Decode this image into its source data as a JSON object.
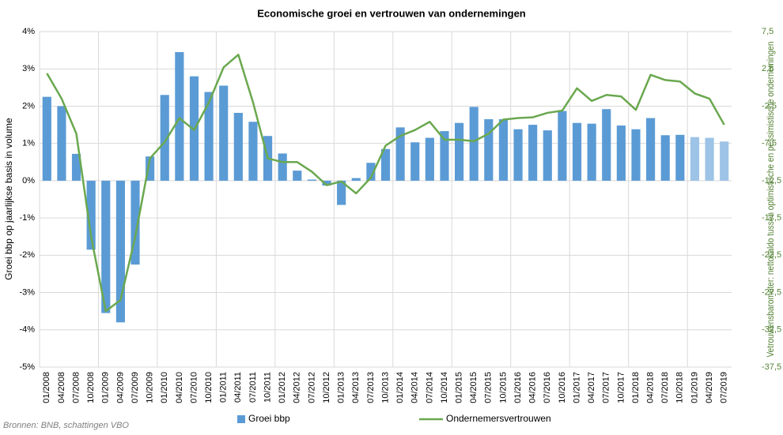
{
  "chart_data": {
    "type": "bar-line",
    "title": "Economische groei en vertrouwen van ondernemingen",
    "ylabel": "Groei bbp op jaarlijkse basis in volume",
    "y2label": "Vetrouwensbarometer: nettosaldo tussen optimistische en pessimistische ondernemingen",
    "source": "Bronnen: BNB, schattingen VBO",
    "categories": [
      "01/2008",
      "04/2008",
      "07/2008",
      "10/2008",
      "01/2009",
      "04/2009",
      "07/2009",
      "10/2009",
      "01/2010",
      "04/2010",
      "07/2010",
      "10/2010",
      "01/2011",
      "04/2011",
      "07/2011",
      "10/2011",
      "01/2012",
      "04/2012",
      "07/2012",
      "10/2012",
      "01/2013",
      "04/2013",
      "07/2013",
      "10/2013",
      "01/2014",
      "04/2014",
      "07/2014",
      "10/2014",
      "01/2015",
      "04/2015",
      "07/2015",
      "10/2015",
      "01/2016",
      "04/2016",
      "07/2016",
      "10/2016",
      "01/2017",
      "04/2017",
      "07/2017",
      "10/2017",
      "01/2018",
      "04/2018",
      "07/2018",
      "10/2018",
      "01/2019",
      "04/2019",
      "07/2019"
    ],
    "series": [
      {
        "name": "Groei bbp",
        "type": "bar",
        "color": "#5b9bd5",
        "colors": [
          "#5b9bd5",
          "#5b9bd5",
          "#5b9bd5",
          "#5b9bd5",
          "#5b9bd5",
          "#5b9bd5",
          "#5b9bd5",
          "#5b9bd5",
          "#5b9bd5",
          "#5b9bd5",
          "#5b9bd5",
          "#5b9bd5",
          "#5b9bd5",
          "#5b9bd5",
          "#5b9bd5",
          "#5b9bd5",
          "#5b9bd5",
          "#5b9bd5",
          "#5b9bd5",
          "#5b9bd5",
          "#5b9bd5",
          "#5b9bd5",
          "#5b9bd5",
          "#5b9bd5",
          "#5b9bd5",
          "#5b9bd5",
          "#5b9bd5",
          "#5b9bd5",
          "#5b9bd5",
          "#5b9bd5",
          "#5b9bd5",
          "#5b9bd5",
          "#5b9bd5",
          "#5b9bd5",
          "#5b9bd5",
          "#5b9bd5",
          "#5b9bd5",
          "#5b9bd5",
          "#5b9bd5",
          "#5b9bd5",
          "#5b9bd5",
          "#5b9bd5",
          "#5b9bd5",
          "#5b9bd5",
          "#9dc3e6",
          "#9dc3e6",
          "#9dc3e6"
        ],
        "values": [
          2.25,
          2.0,
          0.72,
          -1.85,
          -3.55,
          -3.8,
          -2.25,
          0.65,
          2.3,
          3.45,
          2.8,
          2.38,
          2.55,
          1.82,
          1.58,
          1.2,
          0.73,
          0.27,
          0.03,
          -0.13,
          -0.65,
          0.07,
          0.48,
          0.85,
          1.43,
          1.03,
          1.15,
          1.33,
          1.55,
          1.98,
          1.65,
          1.65,
          1.38,
          1.5,
          1.35,
          1.87,
          1.55,
          1.53,
          1.92,
          1.48,
          1.38,
          1.68,
          1.22,
          1.23,
          1.17,
          1.15,
          1.05
        ]
      },
      {
        "name": "Ondernemersvertrouwen",
        "type": "line",
        "axis": "y2",
        "color": "#6aa84f",
        "values": [
          1.9,
          -1.5,
          -6.2,
          -20,
          -30,
          -28.5,
          -20,
          -9.5,
          -7.3,
          -4.1,
          -5.7,
          -2,
          2.7,
          4.4,
          -2,
          -9.5,
          -10,
          -10,
          -11.3,
          -13.1,
          -12.6,
          -14.2,
          -12.1,
          -7.8,
          -6.5,
          -5.7,
          -4.6,
          -7,
          -7,
          -7.2,
          -6.2,
          -4.3,
          -4.1,
          -4.0,
          -3.4,
          -3.1,
          -0.1,
          -1.8,
          -1,
          -1.2,
          -3,
          1.7,
          1,
          0.8,
          -0.8,
          -1.5,
          -5
        ]
      }
    ],
    "ylim": [
      -5,
      4
    ],
    "yticks": [
      {
        "value": -5,
        "label": "-5%"
      },
      {
        "value": -4,
        "label": "-4%"
      },
      {
        "value": -3,
        "label": "-3%"
      },
      {
        "value": -2,
        "label": "-2%"
      },
      {
        "value": -1,
        "label": "-1%"
      },
      {
        "value": 0,
        "label": "0%"
      },
      {
        "value": 1,
        "label": "1%"
      },
      {
        "value": 2,
        "label": "2%"
      },
      {
        "value": 3,
        "label": "3%"
      },
      {
        "value": 4,
        "label": "4%"
      }
    ],
    "y2lim": [
      -37.5,
      7.5
    ],
    "y2ticks": [
      {
        "value": -37.5,
        "label": "-37,5"
      },
      {
        "value": -32.5,
        "label": "-32,5"
      },
      {
        "value": -27.5,
        "label": "-27,5"
      },
      {
        "value": -22.5,
        "label": "-22,5"
      },
      {
        "value": -17.5,
        "label": "-17,5"
      },
      {
        "value": -12.5,
        "label": "-12,5"
      },
      {
        "value": -7.5,
        "label": "-7,5"
      },
      {
        "value": -2.5,
        "label": "-2,5"
      },
      {
        "value": 2.5,
        "label": "2,5"
      },
      {
        "value": 7.5,
        "label": "7,5"
      }
    ],
    "grid": true,
    "legend": "bottom"
  }
}
